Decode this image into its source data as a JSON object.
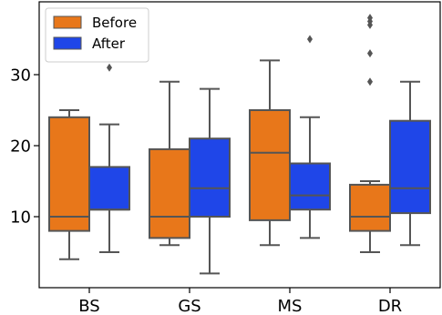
{
  "chart_data": {
    "type": "box",
    "categories": [
      "BS",
      "GS",
      "MS",
      "DR"
    ],
    "ylim": [
      0,
      40
    ],
    "yticks": [
      10,
      20,
      30
    ],
    "ytick_labels": [
      "10",
      "20",
      "30"
    ],
    "legend_position": "top-left",
    "grid": false,
    "series": [
      {
        "name": "Before",
        "color": "#E8771A",
        "boxes": [
          {
            "min": 4,
            "q1": 8,
            "median": 10,
            "q3": 24,
            "max": 25,
            "outliers": []
          },
          {
            "min": 6,
            "q1": 7,
            "median": 10,
            "q3": 19.5,
            "max": 29,
            "outliers": []
          },
          {
            "min": 6,
            "q1": 9.5,
            "median": 19,
            "q3": 25,
            "max": 32,
            "outliers": []
          },
          {
            "min": 5,
            "q1": 8,
            "median": 10,
            "q3": 14.5,
            "max": 15,
            "outliers": [
              29,
              33,
              37,
              37.5,
              38
            ]
          }
        ]
      },
      {
        "name": "After",
        "color": "#1F46E8",
        "boxes": [
          {
            "min": 5,
            "q1": 11,
            "median": 11,
            "q3": 17,
            "max": 23,
            "outliers": [
              31
            ]
          },
          {
            "min": 2,
            "q1": 10,
            "median": 14,
            "q3": 21,
            "max": 28,
            "outliers": []
          },
          {
            "min": 7,
            "q1": 11,
            "median": 13,
            "q3": 17.5,
            "max": 24,
            "outliers": [
              35
            ]
          },
          {
            "min": 6,
            "q1": 10.5,
            "median": 14,
            "q3": 23.5,
            "max": 29,
            "outliers": []
          }
        ]
      }
    ]
  }
}
